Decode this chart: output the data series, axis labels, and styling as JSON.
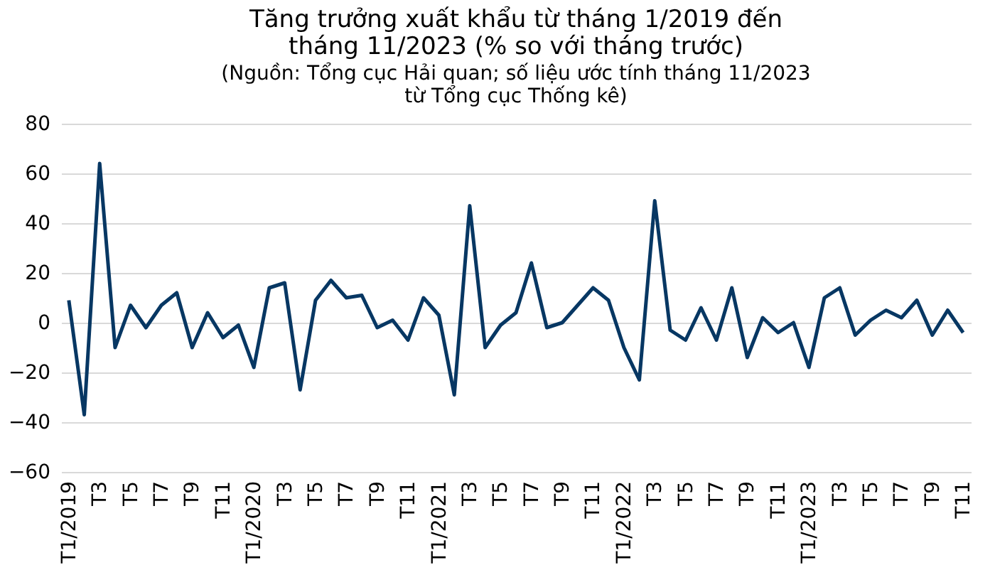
{
  "chart_data": {
    "type": "line",
    "title": "Tăng trưởng xuất khẩu từ tháng 1/2019 đến tháng 11/2023 (% so với tháng trước)",
    "subtitle": "(Nguồn: Tổng cục Hải quan; số liệu ước tính tháng 11/2023 từ Tổng cục Thống kê)",
    "categories": [
      "T1/2019",
      null,
      "T3",
      null,
      "T5",
      null,
      "T7",
      null,
      "T9",
      null,
      "T11",
      null,
      "T1/2020",
      null,
      "T3",
      null,
      "T5",
      null,
      "T7",
      null,
      "T9",
      null,
      "T11",
      null,
      "T1/2021",
      null,
      "T3",
      null,
      "T5",
      null,
      "T7",
      null,
      "T9",
      null,
      "T11",
      null,
      "T1/2022",
      null,
      "T3",
      null,
      "T5",
      null,
      "T7",
      null,
      "T9",
      null,
      "T11",
      null,
      "T1/2023",
      null,
      "T3",
      null,
      "T5",
      null,
      "T7",
      null,
      "T9",
      null,
      "T11"
    ],
    "series": [
      {
        "color": "#073763",
        "values": [
          9,
          -37,
          64,
          -10,
          7,
          -2,
          7,
          12,
          -10,
          4,
          -6,
          -1,
          -18,
          14,
          16,
          -27,
          9,
          17,
          10,
          11,
          -2,
          1,
          -7,
          10,
          3,
          -29,
          47,
          -10,
          -1,
          4,
          24,
          -2,
          0,
          7,
          14,
          9,
          -10,
          -23,
          49,
          -3,
          -7,
          6,
          -7,
          14,
          -14,
          2,
          -4,
          0,
          -18,
          10,
          14,
          -5,
          1,
          5,
          2,
          9,
          -5,
          5,
          -4
        ]
      }
    ],
    "ylim": [
      -60,
      80
    ],
    "yticks": [
      -60,
      -40,
      -20,
      0,
      20,
      40,
      60,
      80
    ],
    "grid": "y",
    "legend": false,
    "marker": "none",
    "line_style": "solid"
  }
}
